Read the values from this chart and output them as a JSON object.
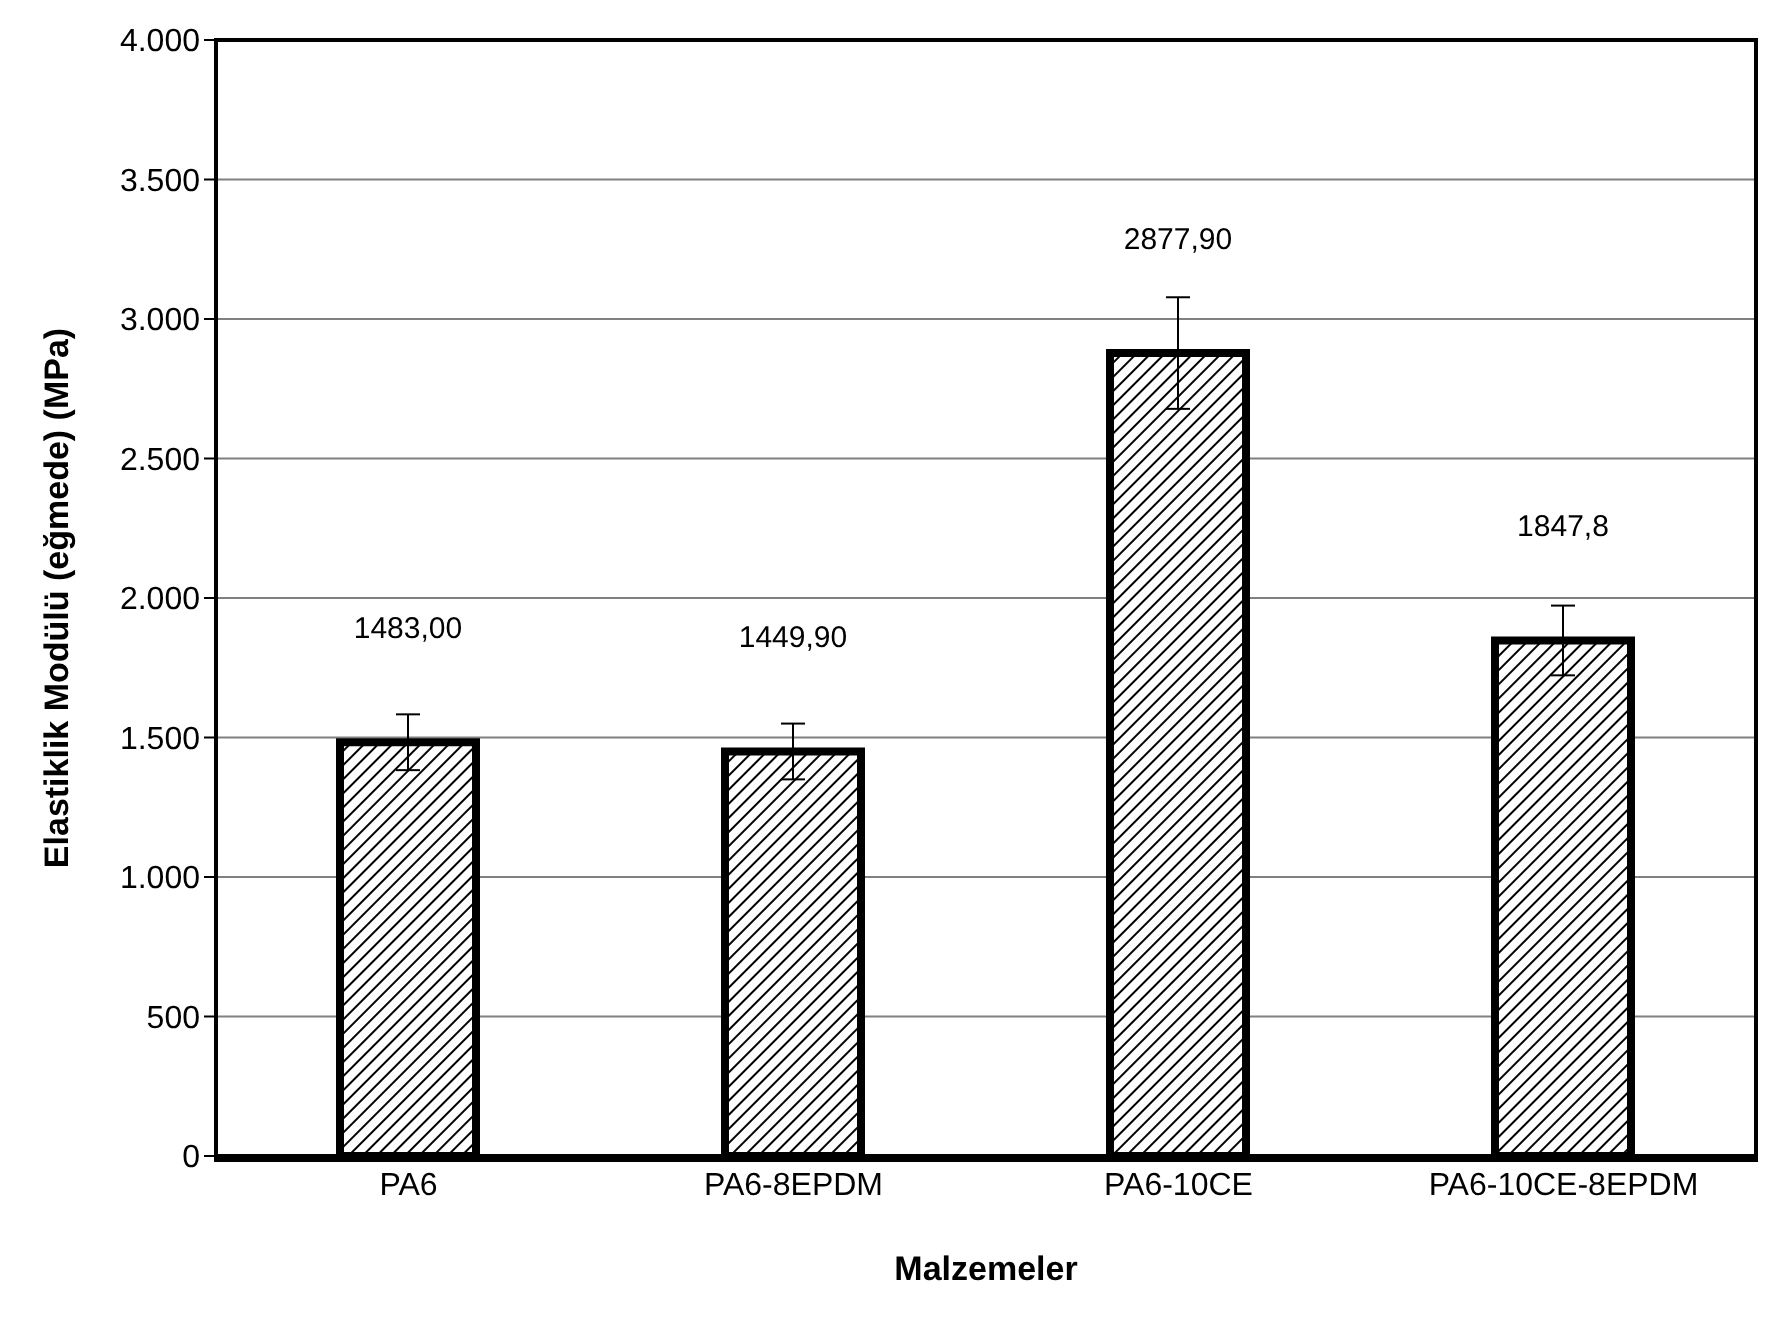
{
  "chart_data": {
    "type": "bar",
    "xlabel": "Malzemeler",
    "ylabel": "Elastiklik Modülü (eğmede) (MPa)",
    "categories": [
      "PA6",
      "PA6-8EPDM",
      "PA6-10CE",
      "PA6-10CE-8EPDM"
    ],
    "values": [
      1483.0,
      1449.9,
      2877.9,
      1847.8
    ],
    "value_labels": [
      "1483,00",
      "1449,90",
      "2877,90",
      "1847,8"
    ],
    "errors": [
      100,
      100,
      200,
      125
    ],
    "color": "#000000",
    "ylim": [
      0,
      4000
    ],
    "yticks": [
      0,
      {
        "value": 500,
        "label": "500"
      },
      {
        "value": 1000,
        "label": "1.000"
      },
      {
        "value": 1500,
        "label": "1.500"
      },
      {
        "value": 2000,
        "label": "2.000"
      },
      {
        "value": 2500,
        "label": "2.500"
      },
      {
        "value": 3000,
        "label": "3.000"
      },
      {
        "value": 3500,
        "label": "3.500"
      },
      {
        "value": 4000,
        "label": "4.000"
      }
    ],
    "grid": "y",
    "legend": false
  }
}
